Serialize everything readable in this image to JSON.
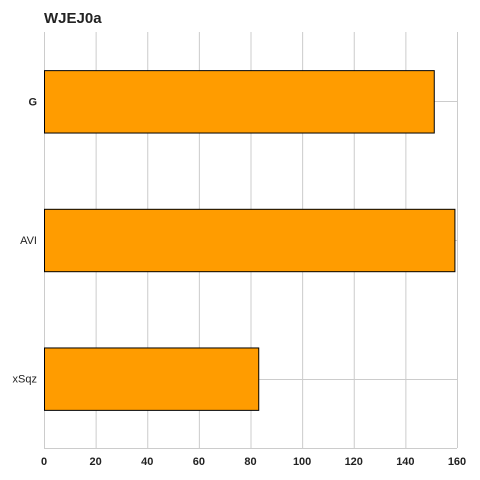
{
  "chart_data": {
    "type": "bar",
    "orientation": "horizontal",
    "title": "WJEJ0a",
    "categories": [
      "G",
      "AVI",
      "xSqz"
    ],
    "values": [
      151,
      159,
      83
    ],
    "xlim": [
      0,
      160
    ],
    "xticks": [
      0,
      20,
      40,
      60,
      80,
      100,
      120,
      140,
      160
    ],
    "grid": true,
    "bar_color": "#ff9c00",
    "bar_edge_color": "#000000",
    "grid_color": "#cccccc"
  }
}
